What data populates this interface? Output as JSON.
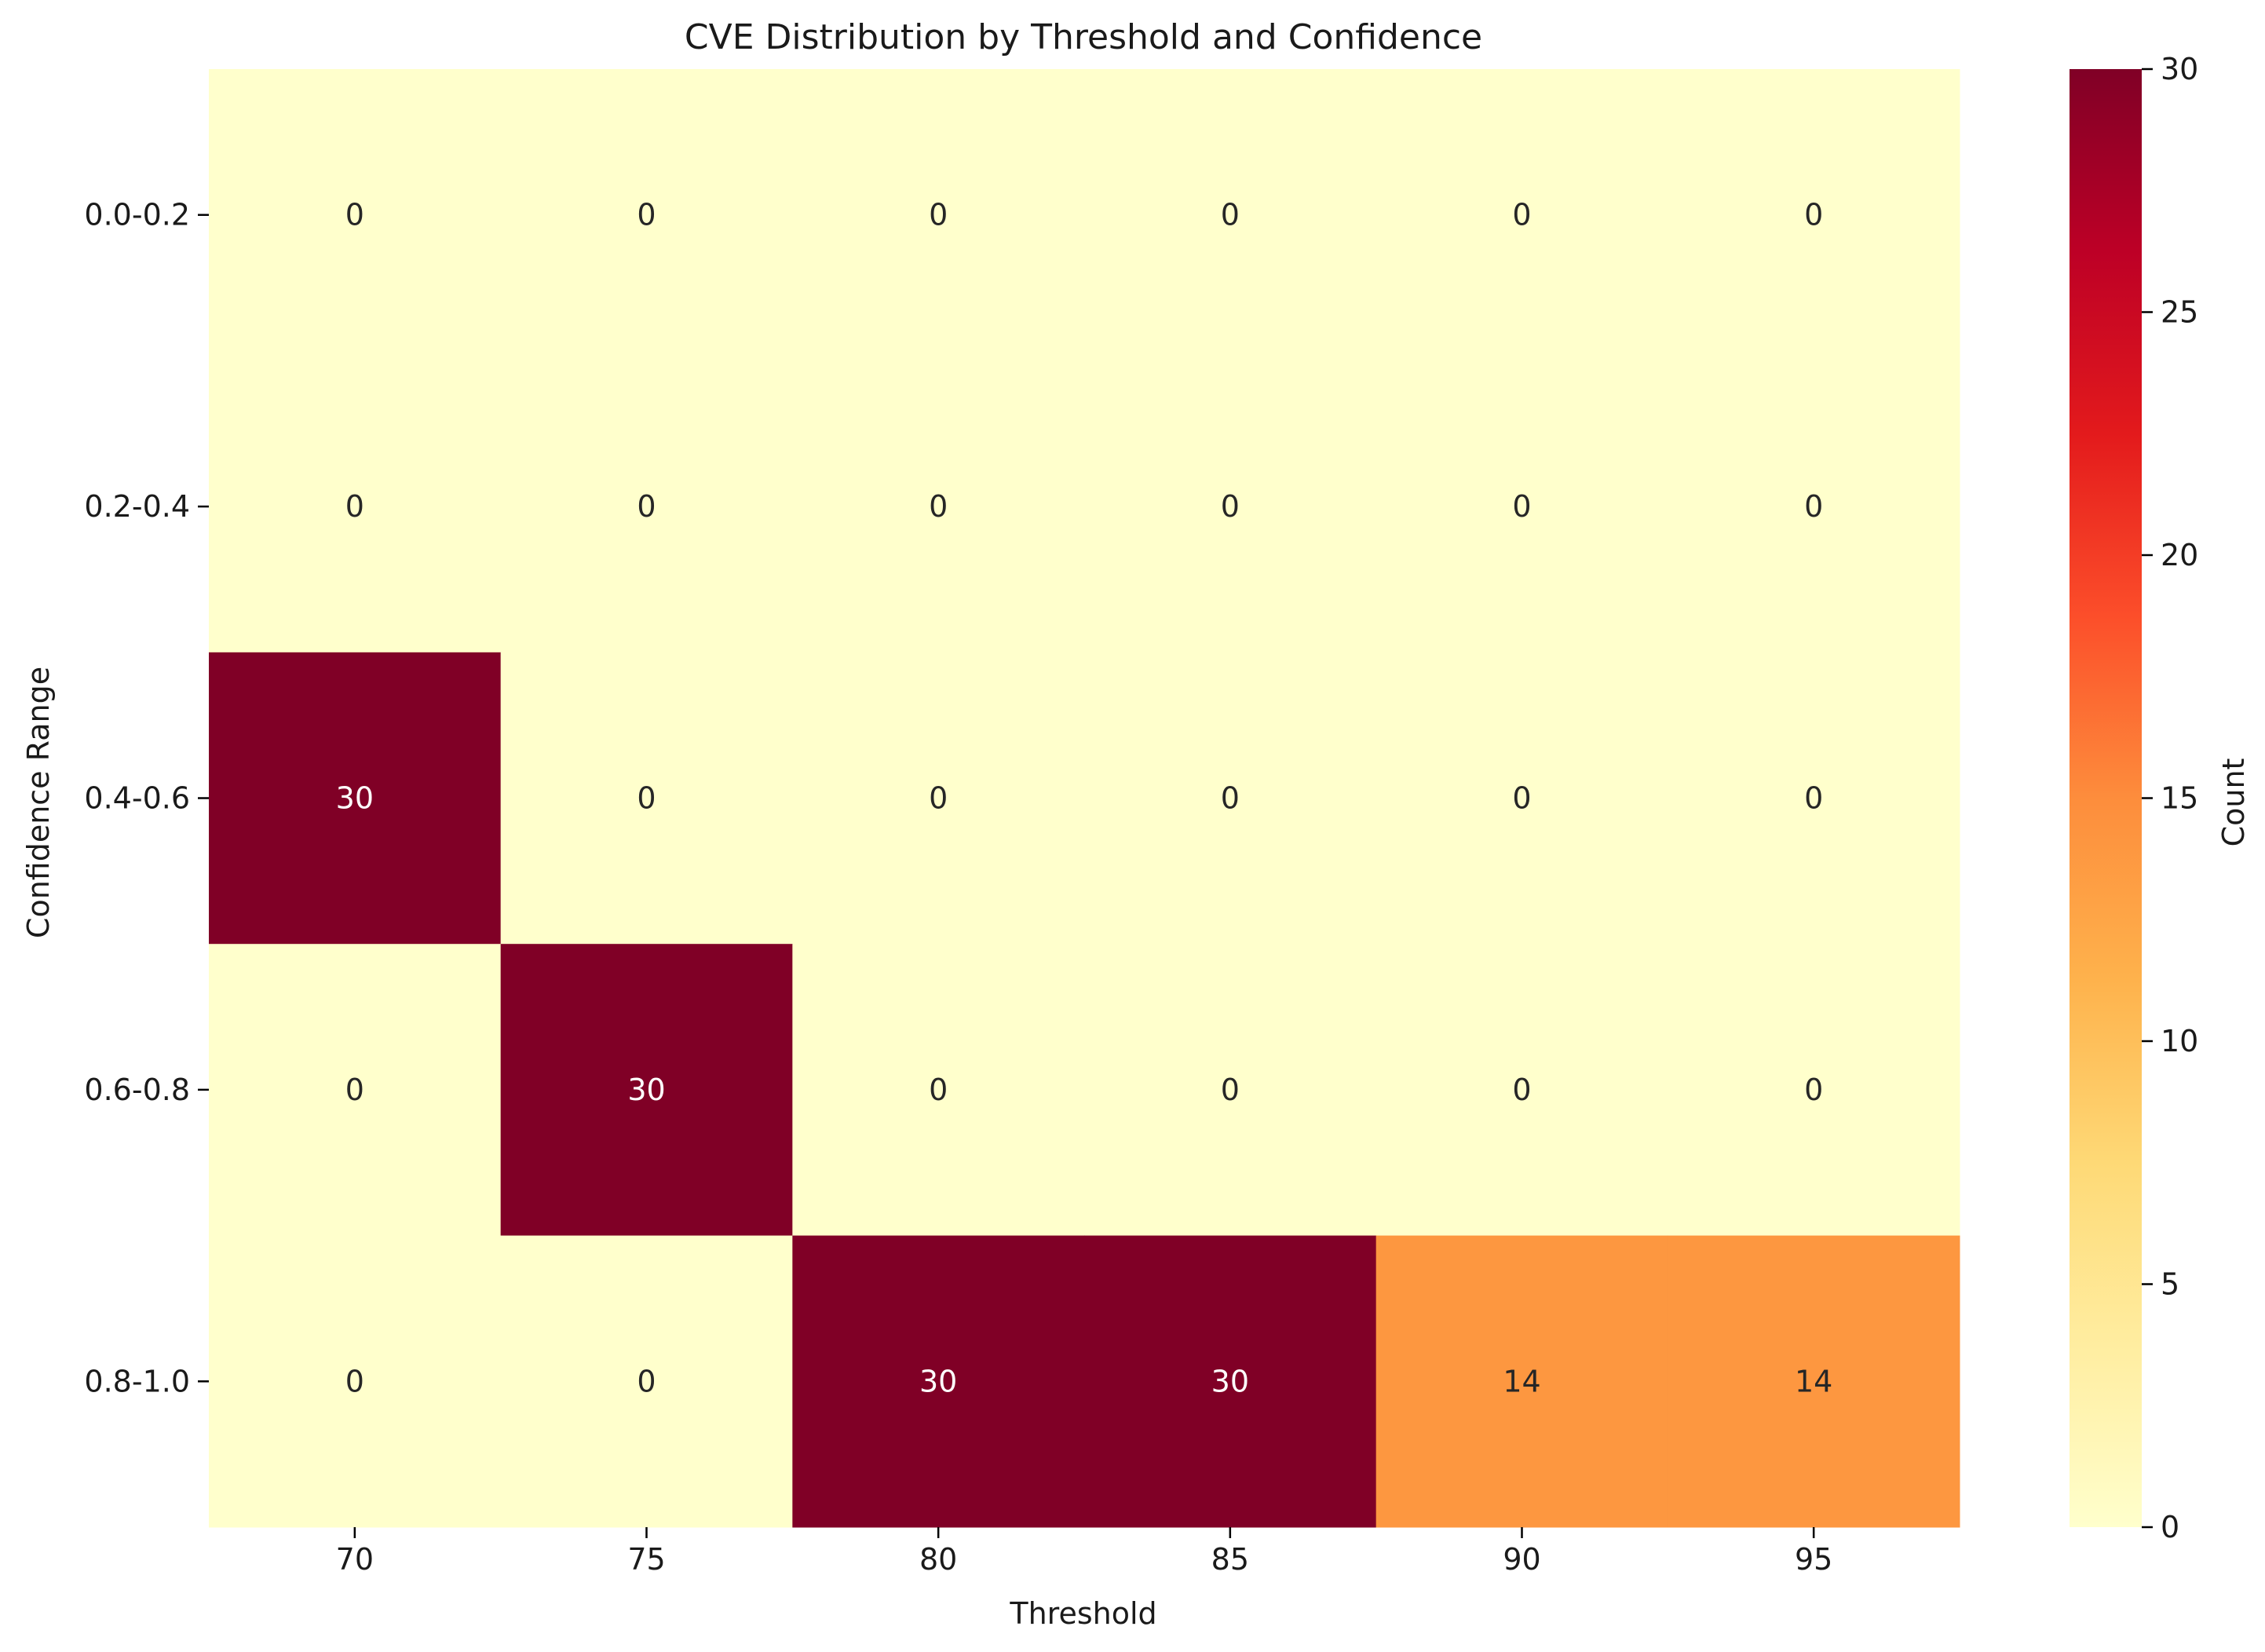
{
  "chart_data": {
    "type": "heatmap",
    "title": "CVE Distribution by Threshold and Confidence",
    "xlabel": "Threshold",
    "ylabel": "Confidence Range",
    "x_categories": [
      "70",
      "75",
      "80",
      "85",
      "90",
      "95"
    ],
    "y_categories": [
      "0.0-0.2",
      "0.2-0.4",
      "0.4-0.6",
      "0.6-0.8",
      "0.8-1.0"
    ],
    "values": [
      [
        0,
        0,
        0,
        0,
        0,
        0
      ],
      [
        0,
        0,
        0,
        0,
        0,
        0
      ],
      [
        30,
        0,
        0,
        0,
        0,
        0
      ],
      [
        0,
        30,
        0,
        0,
        0,
        0
      ],
      [
        0,
        0,
        30,
        30,
        14,
        14
      ]
    ],
    "colorbar": {
      "label": "Count",
      "min": 0,
      "max": 30,
      "ticks": [
        0,
        5,
        10,
        15,
        20,
        25,
        30
      ],
      "colormap": "YlOrRd"
    }
  }
}
